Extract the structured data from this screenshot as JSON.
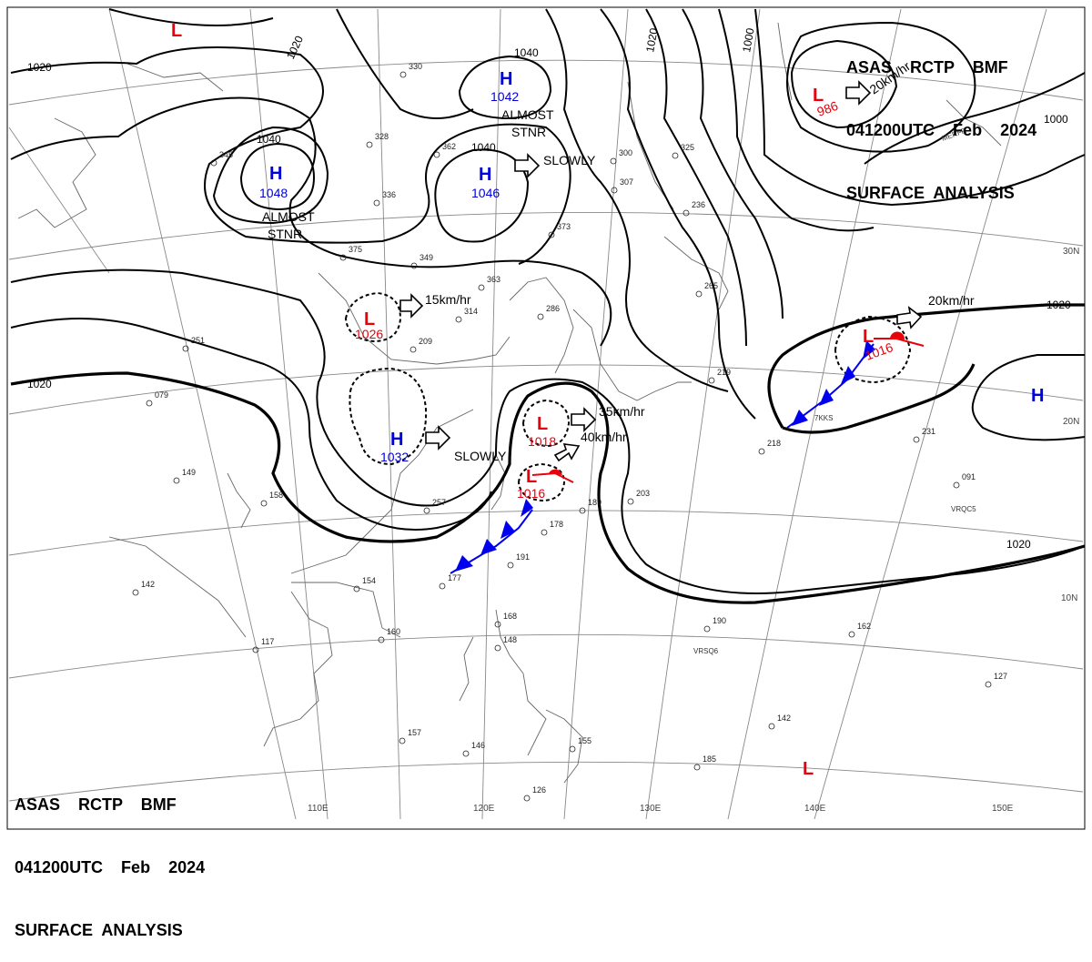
{
  "header_top": {
    "line1": "ASAS    RCTP    BMF",
    "line2": "041200UTC    Feb    2024",
    "line3": "SURFACE  ANALYSIS"
  },
  "header_bottom": {
    "line1": "ASAS    RCTP    BMF",
    "line2": "041200UTC    Feb    2024",
    "line3": "SURFACE  ANALYSIS"
  },
  "longitude_labels": [
    "110E",
    "120E",
    "130E",
    "140E",
    "150E"
  ],
  "latitude_labels": [
    "30N",
    "20N",
    "10N"
  ],
  "isobar_labels": [
    "1020",
    "1020",
    "1040",
    "1040",
    "1040",
    "1020",
    "1000",
    "1000",
    "1020",
    "1020",
    "1020"
  ],
  "pressure_systems": [
    {
      "type": "L",
      "value": "",
      "color": "#e8000b"
    },
    {
      "type": "H",
      "value": "1048",
      "color": "#0000dd"
    },
    {
      "type": "H",
      "value": "1042",
      "color": "#0000dd"
    },
    {
      "type": "H",
      "value": "1046",
      "color": "#0000dd"
    },
    {
      "type": "L",
      "value": "986",
      "color": "#e8000b"
    },
    {
      "type": "L",
      "value": "1026",
      "color": "#e8000b"
    },
    {
      "type": "H",
      "value": "1032",
      "color": "#0000dd"
    },
    {
      "type": "L",
      "value": "1018",
      "color": "#e8000b"
    },
    {
      "type": "L",
      "value": "1016",
      "color": "#e8000b"
    },
    {
      "type": "L",
      "value": "1016",
      "color": "#e8000b"
    },
    {
      "type": "H",
      "value": "",
      "color": "#0000dd"
    },
    {
      "type": "L",
      "value": "",
      "color": "#e8000b"
    }
  ],
  "movement_notes": {
    "almost_stnr_1": [
      "ALMOST",
      "STNR"
    ],
    "almost_stnr_2": [
      "ALMOST",
      "STNR"
    ],
    "slowly_1": "SLOWLY",
    "slowly_2": "SLOWLY",
    "speed_20_ne": "20km/hr",
    "speed_15": "15km/hr",
    "speed_20_e": "20km/hr",
    "speed_35": "35km/hr",
    "speed_40": "40km/hr"
  },
  "ship_ids": [
    "MERFR",
    "7KKS",
    "VRQC5",
    "VRSQ6"
  ],
  "station_values": [
    "330",
    "328",
    "362",
    "345",
    "336",
    "375",
    "349",
    "300",
    "307",
    "373",
    "363",
    "314",
    "251",
    "209",
    "079",
    "158",
    "149",
    "142",
    "154",
    "160",
    "117",
    "157",
    "146",
    "126",
    "168",
    "148",
    "155",
    "178",
    "191",
    "177",
    "189",
    "203",
    "218",
    "219",
    "231",
    "091",
    "190",
    "162",
    "127",
    "142",
    "185",
    "257",
    "236",
    "325",
    "265",
    "286"
  ],
  "colors": {
    "low": "#e8000b",
    "high": "#0000dd",
    "cold_front": "#0000ee",
    "warm_front": "#e8000b",
    "isobar": "#000000",
    "coastline": "#555555",
    "grid": "#888888"
  }
}
